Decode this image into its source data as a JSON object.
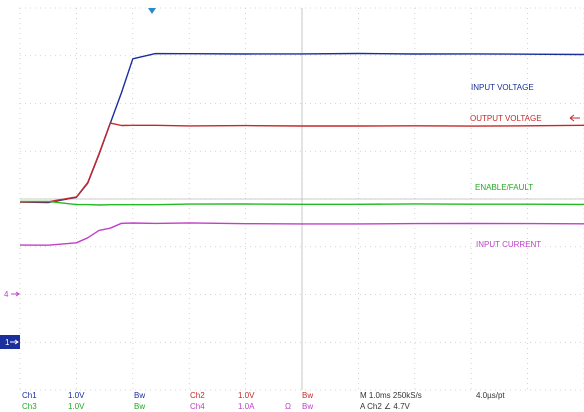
{
  "chart_data": {
    "type": "line",
    "title": "",
    "xlabel": "",
    "ylabel": "",
    "grid": true,
    "x_unit": "ms",
    "x": [
      0,
      0.5,
      1.0,
      1.2,
      1.4,
      1.6,
      1.8,
      2.0,
      2.4,
      3.0,
      4.0,
      5.0,
      6.0,
      7.0,
      8.0,
      9.0,
      10.0
    ],
    "series": [
      {
        "name": "INPUT VOLTAGE",
        "color": "#1a2e9c",
        "channel": "Ch1",
        "values": [
          0,
          0,
          0.1,
          0.4,
          1.0,
          1.65,
          2.3,
          3.0,
          3.1,
          3.1,
          3.1,
          3.1,
          3.1,
          3.1,
          3.1,
          3.1,
          3.1
        ]
      },
      {
        "name": "OUTPUT VOLTAGE",
        "color": "#c62828",
        "channel": "Ch2",
        "values": [
          0,
          0,
          0.1,
          0.4,
          1.0,
          1.65,
          1.6,
          1.6,
          1.6,
          1.6,
          1.6,
          1.6,
          1.6,
          1.6,
          1.6,
          1.6,
          1.6
        ]
      },
      {
        "name": "ENABLE/FAULT",
        "color": "#22bb22",
        "channel": "Ch3",
        "values": [
          0,
          0,
          -0.05,
          -0.05,
          -0.05,
          -0.05,
          -0.05,
          -0.05,
          -0.05,
          -0.05,
          -0.05,
          -0.05,
          -0.05,
          -0.05,
          -0.05,
          -0.05,
          -0.05
        ]
      },
      {
        "name": "INPUT CURRENT",
        "color": "#c040c8",
        "channel": "Ch4",
        "values": [
          -0.9,
          -0.9,
          -0.85,
          -0.75,
          -0.6,
          -0.55,
          -0.45,
          -0.45,
          -0.45,
          -0.45,
          -0.45,
          -0.45,
          -0.45,
          -0.45,
          -0.45,
          -0.45,
          -0.45
        ]
      }
    ],
    "annotations": [
      "INPUT VOLTAGE",
      "OUTPUT VOLTAGE",
      "ENABLE/FAULT",
      "INPUT CURRENT"
    ],
    "markers": {
      "ch4": "4",
      "ch1": "1"
    },
    "status": {
      "row1": [
        "Ch1",
        "1.0V",
        "Bw",
        "Ch2",
        "1.0V",
        "Bw",
        "M 1.0ms 250kS/s",
        "4.0µs/pt"
      ],
      "row2": [
        "Ch3",
        "1.0V",
        "Bw",
        "Ch4",
        "1.0A",
        "Ω",
        "Bw",
        "A  Ch2  ∠  4.7V"
      ]
    }
  }
}
